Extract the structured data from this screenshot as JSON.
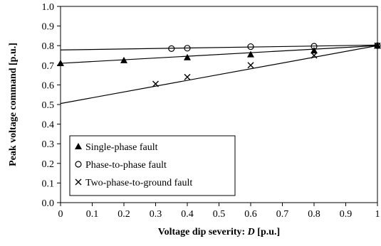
{
  "chart_data": {
    "type": "scatter",
    "xlabel_main": "Voltage dip severity: ",
    "xlabel_var": "D",
    "xlabel_unit": " [p.u.]",
    "ylabel": "Peak voltage command [p.u.]",
    "xlim": [
      0,
      1
    ],
    "ylim": [
      0,
      1.0
    ],
    "x_ticks": [
      "0",
      "0.1",
      "0.2",
      "0.3",
      "0.4",
      "0.5",
      "0.6",
      "0.7",
      "0.8",
      "0.9",
      "1"
    ],
    "y_ticks": [
      "0.0",
      "0.1",
      "0.2",
      "0.3",
      "0.4",
      "0.5",
      "0.6",
      "0.7",
      "0.8",
      "0.9",
      "1.0"
    ],
    "grid": false,
    "legend_position": "bottom-left",
    "series": [
      {
        "name": "Single-phase fault",
        "marker": "filled-triangle",
        "points": [
          {
            "x": 0,
            "y": 0.71
          },
          {
            "x": 0.2,
            "y": 0.725
          },
          {
            "x": 0.4,
            "y": 0.74
          },
          {
            "x": 0.6,
            "y": 0.755
          },
          {
            "x": 0.8,
            "y": 0.775
          },
          {
            "x": 1,
            "y": 0.8
          }
        ],
        "trendline": [
          [
            0,
            0.71
          ],
          [
            1,
            0.8
          ]
        ]
      },
      {
        "name": "Phase-to-phase fault",
        "marker": "open-circle",
        "points": [
          {
            "x": 0.35,
            "y": 0.785
          },
          {
            "x": 0.4,
            "y": 0.787
          },
          {
            "x": 0.6,
            "y": 0.795
          },
          {
            "x": 0.8,
            "y": 0.797
          },
          {
            "x": 1,
            "y": 0.8
          }
        ],
        "trendline": [
          [
            0,
            0.778
          ],
          [
            1,
            0.803
          ]
        ]
      },
      {
        "name": "Two-phase-to-ground fault",
        "marker": "cross",
        "points": [
          {
            "x": 0.3,
            "y": 0.605
          },
          {
            "x": 0.4,
            "y": 0.64
          },
          {
            "x": 0.6,
            "y": 0.7
          },
          {
            "x": 0.8,
            "y": 0.75
          },
          {
            "x": 1,
            "y": 0.8
          }
        ],
        "trendline": [
          [
            0,
            0.505
          ],
          [
            1,
            0.8
          ]
        ]
      }
    ]
  }
}
